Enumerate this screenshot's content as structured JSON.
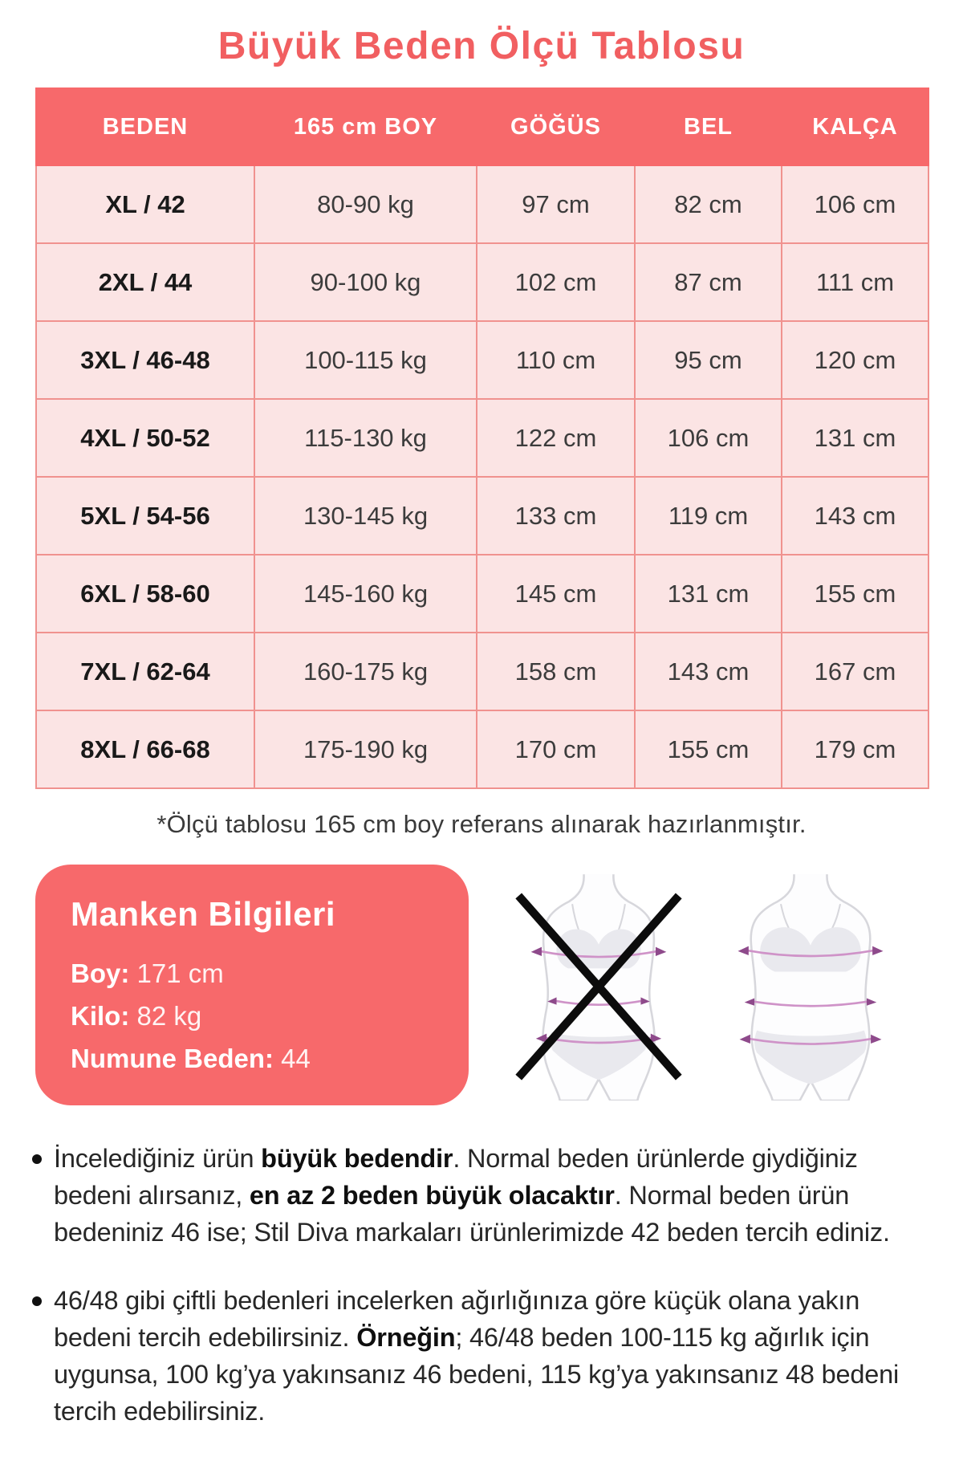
{
  "title": "Büyük Beden Ölçü Tablosu",
  "table": {
    "headers": [
      "BEDEN",
      "165 cm BOY",
      "GÖĞÜS",
      "BEL",
      "KALÇA"
    ],
    "rows": [
      [
        "XL / 42",
        "80-90 kg",
        "97 cm",
        "82 cm",
        "106 cm"
      ],
      [
        "2XL / 44",
        "90-100 kg",
        "102 cm",
        "87 cm",
        "111 cm"
      ],
      [
        "3XL / 46-48",
        "100-115 kg",
        "110 cm",
        "95 cm",
        "120 cm"
      ],
      [
        "4XL / 50-52",
        "115-130 kg",
        "122 cm",
        "106 cm",
        "131 cm"
      ],
      [
        "5XL / 54-56",
        "130-145 kg",
        "133 cm",
        "119 cm",
        "143 cm"
      ],
      [
        "6XL / 58-60",
        "145-160 kg",
        "145 cm",
        "131 cm",
        "155 cm"
      ],
      [
        "7XL / 62-64",
        "160-175 kg",
        "158 cm",
        "143 cm",
        "167 cm"
      ],
      [
        "8XL / 66-68",
        "175-190 kg",
        "170 cm",
        "155 cm",
        "179 cm"
      ]
    ]
  },
  "footnote": "*Ölçü tablosu 165 cm boy referans alınarak hazırlanmıştır.",
  "model_info": {
    "title": "Manken Bilgileri",
    "fields": [
      {
        "label": "Boy",
        "value": "171 cm"
      },
      {
        "label": "Kilo",
        "value": "82 kg"
      },
      {
        "label": "Numune Beden",
        "value": "44"
      }
    ]
  },
  "icons": {
    "wrong_fit_figure": "slim-body-crossed-icon",
    "right_fit_figure": "plus-body-icon",
    "x_mark": "x-mark-icon",
    "bullet": "bullet-dot"
  },
  "bullets": [
    {
      "segments": [
        {
          "text": "İncelediğiniz ürün ",
          "bold": false
        },
        {
          "text": "büyük bedendir",
          "bold": true
        },
        {
          "text": ". Normal beden ürünlerde giydiğiniz bedeni alırsanız, ",
          "bold": false
        },
        {
          "text": "en az 2 beden büyük olacaktır",
          "bold": true
        },
        {
          "text": ". Normal beden ürün bedeniniz 46 ise; Stil Diva markaları ürünlerimizde 42 beden tercih ediniz.",
          "bold": false
        }
      ]
    },
    {
      "segments": [
        {
          "text": "46/48 gibi çiftli bedenleri incelerken ağırlığınıza göre küçük olana yakın bedeni tercih edebilirsiniz. ",
          "bold": false
        },
        {
          "text": "Örneğin",
          "bold": true
        },
        {
          "text": "; 46/48 beden 100-115 kg ağırlık için uygunsa, 100 kg’ya yakınsanız 46 bedeni, 115 kg’ya yakınsanız 48 bedeni tercih edebilirsiniz.",
          "bold": false
        }
      ]
    }
  ],
  "colors": {
    "accent_coral": "#f7696b",
    "title_red": "#f15f61",
    "row_pink": "#fbe4e4",
    "table_border_pink": "#f0928f",
    "header_divider_pink": "#fbb5b4",
    "text_dark": "#272727",
    "figure_gray": "#e9e9ee",
    "figure_outline_gray": "#d7d7dc",
    "measure_line_pink": "#cf93c8",
    "measure_tip_purple": "#8e4a8b",
    "x_mark_black": "#0c0c0c"
  }
}
